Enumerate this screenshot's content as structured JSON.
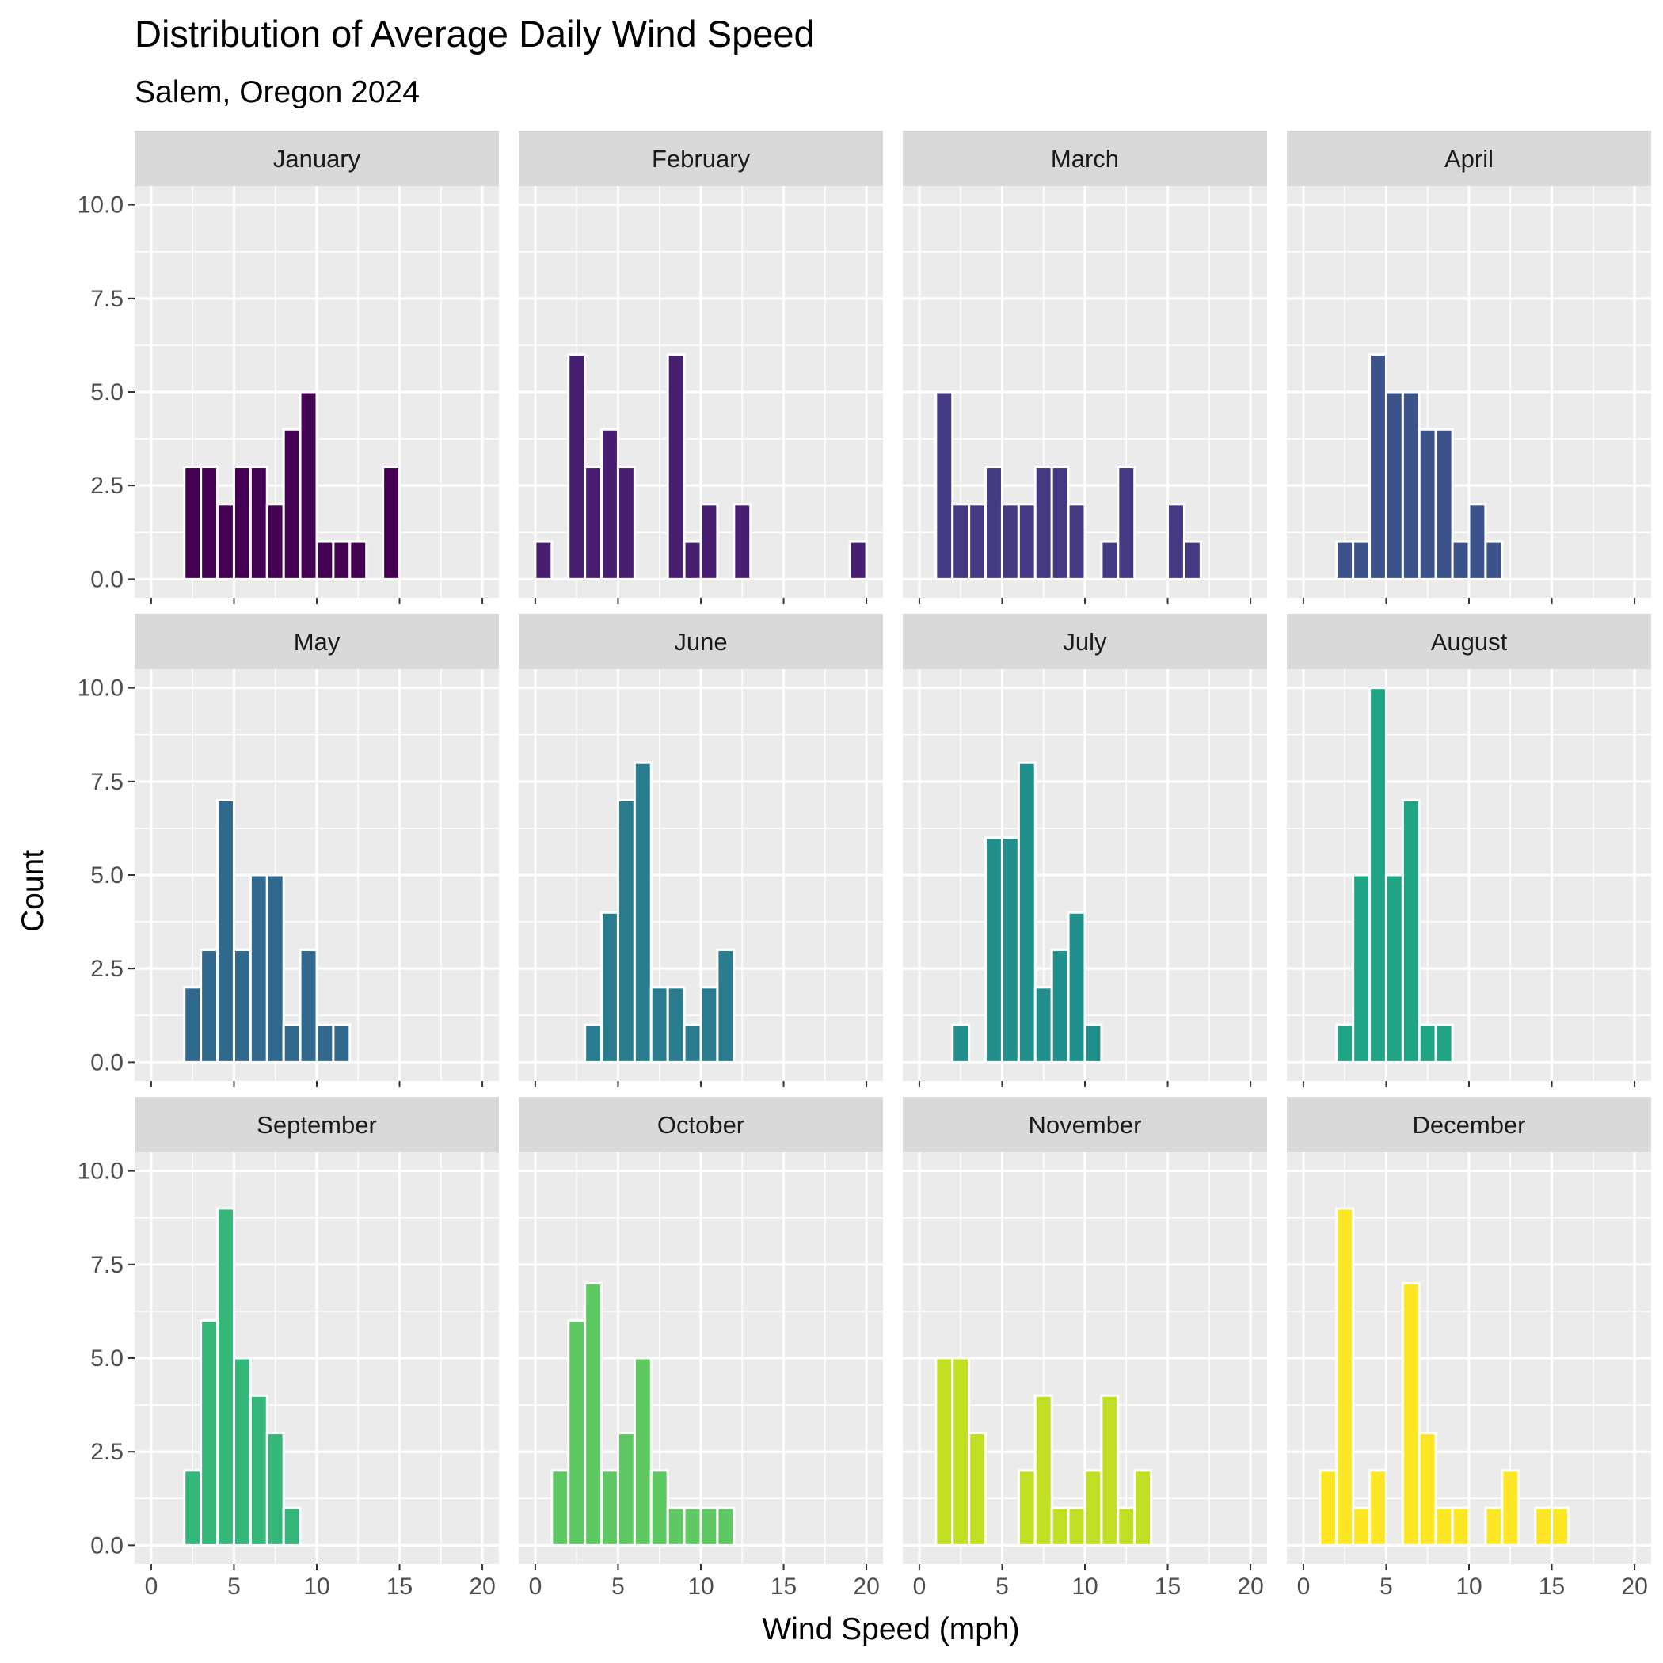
{
  "chart_data": {
    "type": "bar",
    "title": "Distribution of Average Daily Wind Speed",
    "subtitle": "Salem, Oregon 2024",
    "xlabel": "Wind Speed (mph)",
    "ylabel": "Count",
    "xlim": [
      -1,
      21
    ],
    "ylim": [
      -0.5,
      10.5
    ],
    "x_ticks": [
      0,
      5,
      10,
      15,
      20
    ],
    "x_tick_labels": [
      "0",
      "5",
      "10",
      "15",
      "20"
    ],
    "y_ticks": [
      0,
      2.5,
      5,
      7.5,
      10
    ],
    "y_tick_labels": [
      "0.0",
      "2.5",
      "5.0",
      "7.5",
      "10.0"
    ],
    "bin_width": 1,
    "grid": true,
    "legend": "none",
    "panels": [
      {
        "name": "January",
        "color": "#440154",
        "bins": [
          [
            2.5,
            3
          ],
          [
            3.5,
            3
          ],
          [
            4.5,
            2
          ],
          [
            5.5,
            3
          ],
          [
            6.5,
            3
          ],
          [
            7.5,
            2
          ],
          [
            8.5,
            4
          ],
          [
            9.5,
            5
          ],
          [
            10.5,
            1
          ],
          [
            11.5,
            1
          ],
          [
            12.5,
            1
          ],
          [
            14.5,
            3
          ]
        ]
      },
      {
        "name": "February",
        "color": "#481F70",
        "bins": [
          [
            0.5,
            1
          ],
          [
            2.5,
            6
          ],
          [
            3.5,
            3
          ],
          [
            4.5,
            4
          ],
          [
            5.5,
            3
          ],
          [
            8.5,
            6
          ],
          [
            9.5,
            1
          ],
          [
            10.5,
            2
          ],
          [
            12.5,
            2
          ],
          [
            19.5,
            1
          ]
        ]
      },
      {
        "name": "March",
        "color": "#443A83",
        "bins": [
          [
            1.5,
            5
          ],
          [
            2.5,
            2
          ],
          [
            3.5,
            2
          ],
          [
            4.5,
            3
          ],
          [
            5.5,
            2
          ],
          [
            6.5,
            2
          ],
          [
            7.5,
            3
          ],
          [
            8.5,
            3
          ],
          [
            9.5,
            2
          ],
          [
            11.5,
            1
          ],
          [
            12.5,
            3
          ],
          [
            15.5,
            2
          ],
          [
            16.5,
            1
          ]
        ]
      },
      {
        "name": "April",
        "color": "#3B528B",
        "bins": [
          [
            2.5,
            1
          ],
          [
            3.5,
            1
          ],
          [
            4.5,
            6
          ],
          [
            5.5,
            5
          ],
          [
            6.5,
            5
          ],
          [
            7.5,
            4
          ],
          [
            8.5,
            4
          ],
          [
            9.5,
            1
          ],
          [
            10.5,
            2
          ],
          [
            11.5,
            1
          ]
        ]
      },
      {
        "name": "May",
        "color": "#31688E",
        "bins": [
          [
            2.5,
            2
          ],
          [
            3.5,
            3
          ],
          [
            4.5,
            7
          ],
          [
            5.5,
            3
          ],
          [
            6.5,
            5
          ],
          [
            7.5,
            5
          ],
          [
            8.5,
            1
          ],
          [
            9.5,
            3
          ],
          [
            10.5,
            1
          ],
          [
            11.5,
            1
          ]
        ]
      },
      {
        "name": "June",
        "color": "#287C8E",
        "bins": [
          [
            3.5,
            1
          ],
          [
            4.5,
            4
          ],
          [
            5.5,
            7
          ],
          [
            6.5,
            8
          ],
          [
            7.5,
            2
          ],
          [
            8.5,
            2
          ],
          [
            9.5,
            1
          ],
          [
            10.5,
            2
          ],
          [
            11.5,
            3
          ]
        ]
      },
      {
        "name": "July",
        "color": "#21908C",
        "bins": [
          [
            2.5,
            1
          ],
          [
            4.5,
            6
          ],
          [
            5.5,
            6
          ],
          [
            6.5,
            8
          ],
          [
            7.5,
            2
          ],
          [
            8.5,
            3
          ],
          [
            9.5,
            4
          ],
          [
            10.5,
            1
          ]
        ]
      },
      {
        "name": "August",
        "color": "#20A486",
        "bins": [
          [
            2.5,
            1
          ],
          [
            3.5,
            5
          ],
          [
            4.5,
            10
          ],
          [
            5.5,
            5
          ],
          [
            6.5,
            7
          ],
          [
            7.5,
            1
          ],
          [
            8.5,
            1
          ]
        ]
      },
      {
        "name": "September",
        "color": "#35B779",
        "bins": [
          [
            2.5,
            2
          ],
          [
            3.5,
            6
          ],
          [
            4.5,
            9
          ],
          [
            5.5,
            5
          ],
          [
            6.5,
            4
          ],
          [
            7.5,
            3
          ],
          [
            8.5,
            1
          ]
        ]
      },
      {
        "name": "October",
        "color": "#5EC962",
        "bins": [
          [
            1.5,
            2
          ],
          [
            2.5,
            6
          ],
          [
            3.5,
            7
          ],
          [
            4.5,
            2
          ],
          [
            5.5,
            3
          ],
          [
            6.5,
            5
          ],
          [
            7.5,
            2
          ],
          [
            8.5,
            1
          ],
          [
            9.5,
            1
          ],
          [
            10.5,
            1
          ],
          [
            11.5,
            1
          ]
        ]
      },
      {
        "name": "November",
        "color": "#C2DF23",
        "bins": [
          [
            1.5,
            5
          ],
          [
            2.5,
            5
          ],
          [
            3.5,
            3
          ],
          [
            6.5,
            2
          ],
          [
            7.5,
            4
          ],
          [
            8.5,
            1
          ],
          [
            9.5,
            1
          ],
          [
            10.5,
            2
          ],
          [
            11.5,
            4
          ],
          [
            12.5,
            1
          ],
          [
            13.5,
            2
          ]
        ]
      },
      {
        "name": "December",
        "color": "#FDE725",
        "bins": [
          [
            1.5,
            2
          ],
          [
            2.5,
            9
          ],
          [
            3.5,
            1
          ],
          [
            4.5,
            2
          ],
          [
            6.5,
            7
          ],
          [
            7.5,
            3
          ],
          [
            8.5,
            1
          ],
          [
            9.5,
            1
          ],
          [
            11.5,
            1
          ],
          [
            12.5,
            2
          ],
          [
            14.5,
            1
          ],
          [
            15.5,
            1
          ]
        ]
      }
    ]
  }
}
